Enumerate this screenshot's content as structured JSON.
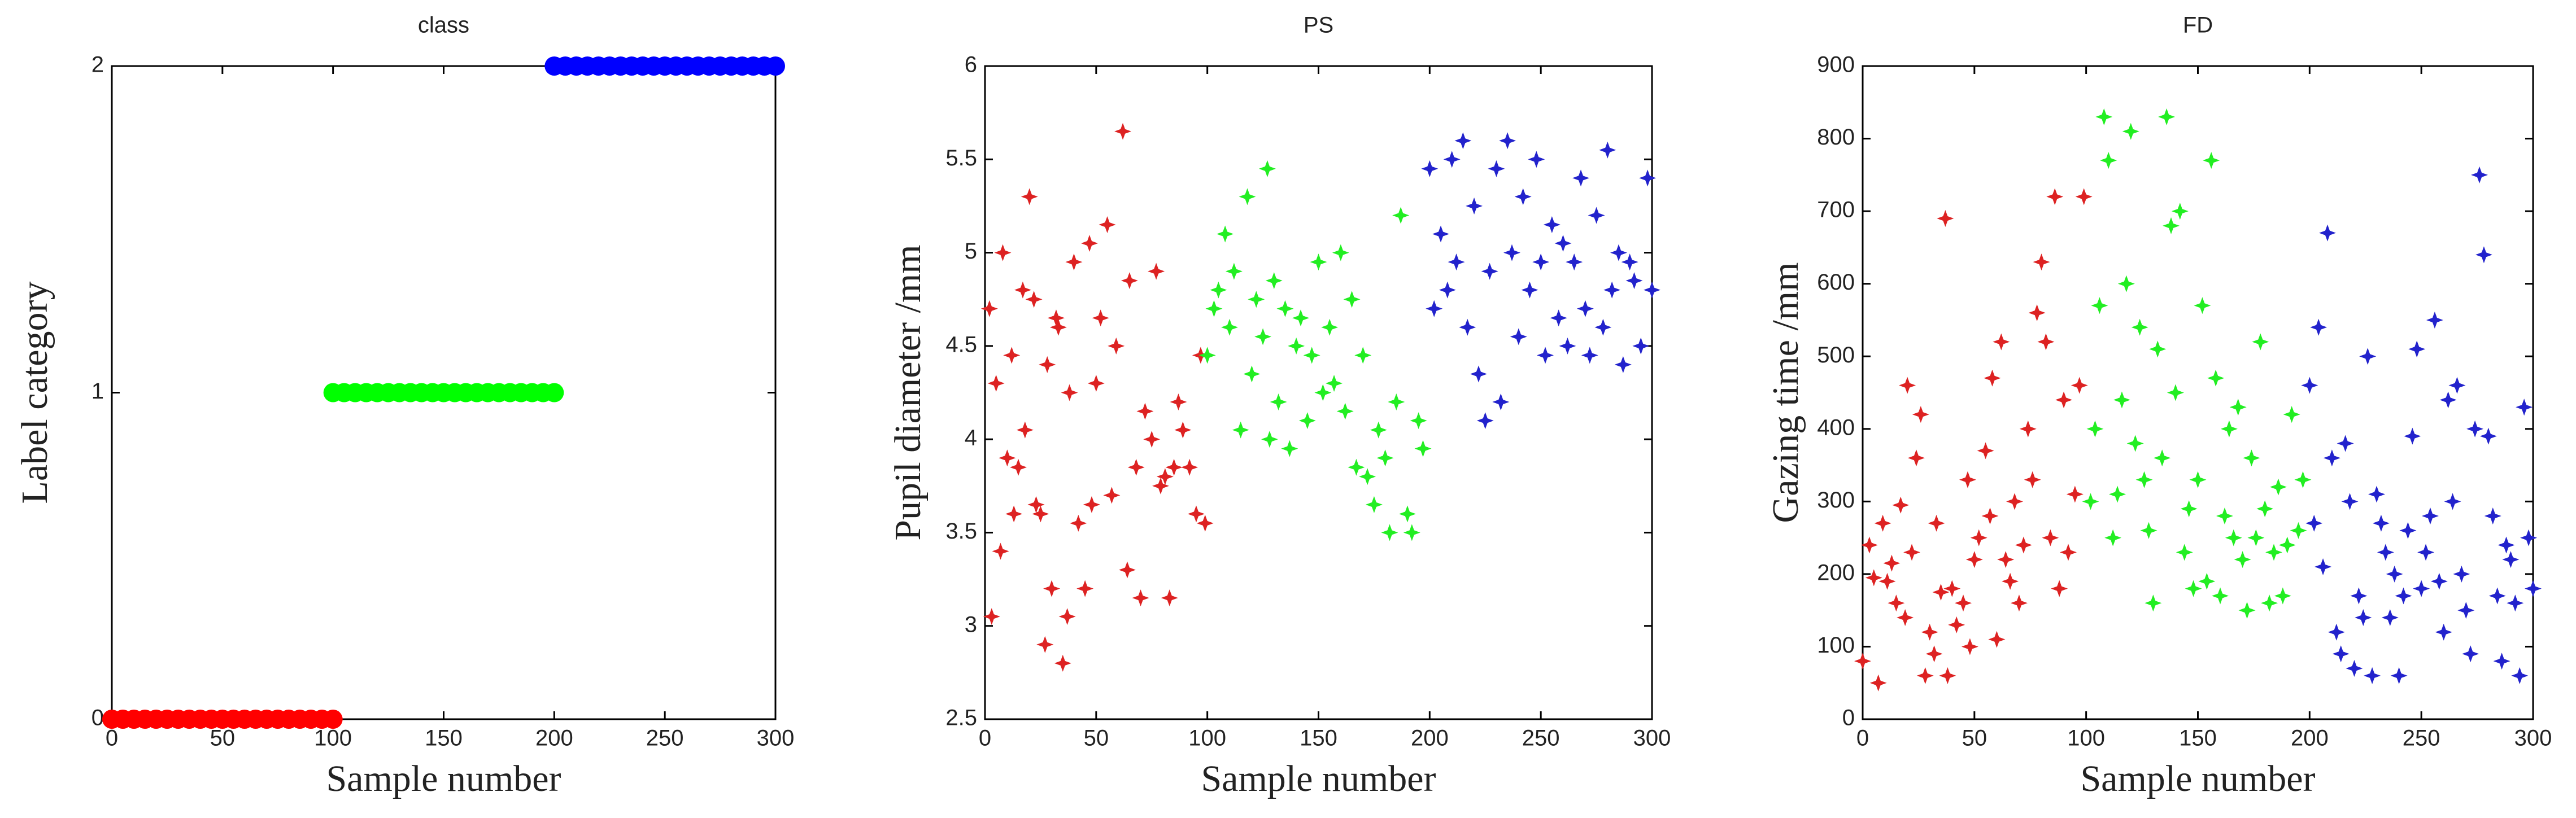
{
  "chart_data": [
    {
      "type": "scatter",
      "title": "class",
      "xlabel": "Sample number",
      "ylabel": "Label category",
      "marker": "o",
      "xlim": [
        0,
        300
      ],
      "ylim": [
        0,
        2
      ],
      "xticks": [
        0,
        50,
        100,
        150,
        200,
        250,
        300
      ],
      "yticks": [
        0,
        1,
        2
      ],
      "series": [
        {
          "color": "#ff0000",
          "x": [
            0,
            5,
            10,
            15,
            20,
            25,
            30,
            35,
            40,
            45,
            50,
            55,
            60,
            65,
            70,
            75,
            80,
            85,
            90,
            95,
            100
          ],
          "values": [
            0,
            0,
            0,
            0,
            0,
            0,
            0,
            0,
            0,
            0,
            0,
            0,
            0,
            0,
            0,
            0,
            0,
            0,
            0,
            0,
            0
          ]
        },
        {
          "color": "#00ff00",
          "x": [
            100,
            105,
            110,
            115,
            120,
            125,
            130,
            135,
            140,
            145,
            150,
            155,
            160,
            165,
            170,
            175,
            180,
            185,
            190,
            195,
            200
          ],
          "values": [
            1,
            1,
            1,
            1,
            1,
            1,
            1,
            1,
            1,
            1,
            1,
            1,
            1,
            1,
            1,
            1,
            1,
            1,
            1,
            1,
            1
          ]
        },
        {
          "color": "#0000ff",
          "x": [
            200,
            205,
            210,
            215,
            220,
            225,
            230,
            235,
            240,
            245,
            250,
            255,
            260,
            265,
            270,
            275,
            280,
            285,
            290,
            295,
            300
          ],
          "values": [
            2,
            2,
            2,
            2,
            2,
            2,
            2,
            2,
            2,
            2,
            2,
            2,
            2,
            2,
            2,
            2,
            2,
            2,
            2,
            2,
            2
          ]
        }
      ]
    },
    {
      "type": "scatter",
      "title": "PS",
      "xlabel": "Sample number",
      "ylabel": "Pupil diameter /mm",
      "marker": "+",
      "xlim": [
        0,
        300
      ],
      "ylim": [
        2.5,
        6
      ],
      "xticks": [
        0,
        50,
        100,
        150,
        200,
        250,
        300
      ],
      "yticks": [
        2.5,
        3,
        3.5,
        4,
        4.5,
        5,
        5.5,
        6
      ],
      "series": [
        {
          "color": "#dd2222",
          "x": [
            2,
            3,
            5,
            7,
            8,
            10,
            12,
            13,
            15,
            17,
            18,
            20,
            22,
            23,
            25,
            27,
            28,
            30,
            32,
            33,
            35,
            37,
            38,
            40,
            42,
            45,
            47,
            48,
            50,
            52,
            55,
            57,
            59,
            62,
            64,
            65,
            68,
            70,
            72,
            75,
            77,
            79,
            81,
            83,
            85,
            87,
            89,
            92,
            95,
            97,
            99
          ],
          "values": [
            4.7,
            3.05,
            4.3,
            3.4,
            5.0,
            3.9,
            4.45,
            3.6,
            3.85,
            4.8,
            4.05,
            5.3,
            4.75,
            3.65,
            3.6,
            2.9,
            4.4,
            3.2,
            4.65,
            4.6,
            2.8,
            3.05,
            4.25,
            4.95,
            3.55,
            3.2,
            5.05,
            3.65,
            4.3,
            4.65,
            5.15,
            3.7,
            4.5,
            5.65,
            3.3,
            4.85,
            3.85,
            3.15,
            4.15,
            4.0,
            4.9,
            3.75,
            3.8,
            3.15,
            3.85,
            4.2,
            4.05,
            3.85,
            3.6,
            4.45,
            3.55
          ]
        },
        {
          "color": "#22ee22",
          "x": [
            100,
            103,
            105,
            108,
            110,
            112,
            115,
            118,
            120,
            122,
            125,
            127,
            128,
            130,
            132,
            135,
            137,
            140,
            142,
            145,
            147,
            150,
            152,
            155,
            157,
            160,
            162,
            165,
            167,
            170,
            172,
            175,
            177,
            180,
            182,
            185,
            187,
            190,
            192,
            195,
            197
          ],
          "values": [
            4.45,
            4.7,
            4.8,
            5.1,
            4.6,
            4.9,
            4.05,
            5.3,
            4.35,
            4.75,
            4.55,
            5.45,
            4.0,
            4.85,
            4.2,
            4.7,
            3.95,
            4.5,
            4.65,
            4.1,
            4.45,
            4.95,
            4.25,
            4.6,
            4.3,
            5.0,
            4.15,
            4.75,
            3.85,
            4.45,
            3.8,
            3.65,
            4.05,
            3.9,
            3.5,
            4.2,
            5.2,
            3.6,
            3.5,
            4.1,
            3.95
          ]
        },
        {
          "color": "#2222cc",
          "x": [
            200,
            202,
            205,
            208,
            210,
            212,
            215,
            217,
            220,
            222,
            225,
            227,
            230,
            232,
            235,
            237,
            240,
            242,
            245,
            248,
            250,
            252,
            255,
            258,
            260,
            262,
            265,
            268,
            270,
            272,
            275,
            278,
            280,
            282,
            285,
            287,
            290,
            292,
            295,
            298,
            300
          ],
          "values": [
            5.45,
            4.7,
            5.1,
            4.8,
            5.5,
            4.95,
            5.6,
            4.6,
            5.25,
            4.35,
            4.1,
            4.9,
            5.45,
            4.2,
            5.6,
            5.0,
            4.55,
            5.3,
            4.8,
            5.5,
            4.95,
            4.45,
            5.15,
            4.65,
            5.05,
            4.5,
            4.95,
            5.4,
            4.7,
            4.45,
            5.2,
            4.6,
            5.55,
            4.8,
            5.0,
            4.4,
            4.95,
            4.85,
            4.5,
            5.4,
            4.8
          ]
        }
      ]
    },
    {
      "type": "scatter",
      "title": "FD",
      "xlabel": "Sample number",
      "ylabel": "Gazing time /mm",
      "marker": "+",
      "xlim": [
        0,
        300
      ],
      "ylim": [
        0,
        900
      ],
      "xticks": [
        0,
        50,
        100,
        150,
        200,
        250,
        300
      ],
      "yticks": [
        0,
        100,
        200,
        300,
        400,
        500,
        600,
        700,
        800,
        900
      ],
      "series": [
        {
          "color": "#dd2222",
          "x": [
            0,
            3,
            5,
            7,
            9,
            11,
            13,
            15,
            17,
            19,
            20,
            22,
            24,
            26,
            28,
            30,
            32,
            33,
            35,
            37,
            38,
            40,
            42,
            45,
            47,
            48,
            50,
            52,
            55,
            57,
            58,
            60,
            62,
            64,
            66,
            68,
            70,
            72,
            74,
            76,
            78,
            80,
            82,
            84,
            86,
            88,
            90,
            92,
            95,
            97,
            99
          ],
          "values": [
            80,
            240,
            195,
            50,
            270,
            190,
            215,
            160,
            295,
            140,
            460,
            230,
            360,
            420,
            60,
            120,
            90,
            270,
            175,
            690,
            60,
            180,
            130,
            160,
            330,
            100,
            220,
            250,
            370,
            280,
            470,
            110,
            520,
            220,
            190,
            300,
            160,
            240,
            400,
            330,
            560,
            630,
            520,
            250,
            720,
            180,
            440,
            230,
            310,
            460,
            720
          ]
        },
        {
          "color": "#22ee22",
          "x": [
            102,
            104,
            106,
            108,
            110,
            112,
            114,
            116,
            118,
            120,
            122,
            124,
            126,
            128,
            130,
            132,
            134,
            136,
            138,
            140,
            142,
            144,
            146,
            148,
            150,
            152,
            154,
            156,
            158,
            160,
            162,
            164,
            166,
            168,
            170,
            172,
            174,
            176,
            178,
            180,
            182,
            184,
            186,
            188,
            190,
            192,
            195,
            197
          ],
          "values": [
            300,
            400,
            570,
            830,
            770,
            250,
            310,
            440,
            600,
            810,
            380,
            540,
            330,
            260,
            160,
            510,
            360,
            830,
            680,
            450,
            700,
            230,
            290,
            180,
            330,
            570,
            190,
            770,
            470,
            170,
            280,
            400,
            250,
            430,
            220,
            150,
            360,
            250,
            520,
            290,
            160,
            230,
            320,
            170,
            240,
            420,
            260,
            330
          ]
        },
        {
          "color": "#2222cc",
          "x": [
            200,
            202,
            204,
            206,
            208,
            210,
            212,
            214,
            216,
            218,
            220,
            222,
            224,
            226,
            228,
            230,
            232,
            234,
            236,
            238,
            240,
            242,
            244,
            246,
            248,
            250,
            252,
            254,
            256,
            258,
            260,
            262,
            264,
            266,
            268,
            270,
            272,
            274,
            276,
            278,
            280,
            282,
            284,
            286,
            288,
            290,
            292,
            294,
            296,
            298,
            300
          ],
          "values": [
            460,
            270,
            540,
            210,
            670,
            360,
            120,
            90,
            380,
            300,
            70,
            170,
            140,
            500,
            60,
            310,
            270,
            230,
            140,
            200,
            60,
            170,
            260,
            390,
            510,
            180,
            230,
            280,
            550,
            190,
            120,
            440,
            300,
            460,
            200,
            150,
            90,
            400,
            750,
            640,
            390,
            280,
            170,
            80,
            240,
            220,
            160,
            60,
            430,
            250,
            180
          ]
        }
      ]
    }
  ]
}
